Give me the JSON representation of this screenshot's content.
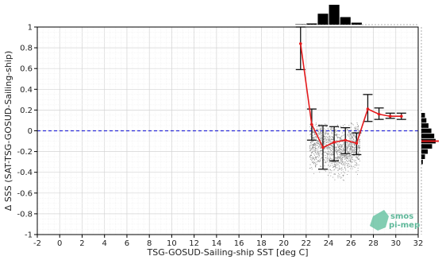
{
  "chart_data": {
    "type": "line",
    "xlabel": "TSG-GOSUD-Sailing-ship SST [deg C]",
    "ylabel": "Δ SSS (SAT-TSG-GOSUD-Sailing-ship)",
    "xlim": [
      -2,
      32
    ],
    "ylim": [
      -1,
      1
    ],
    "xticks": [
      -2,
      0,
      2,
      4,
      6,
      8,
      10,
      12,
      14,
      16,
      18,
      20,
      22,
      24,
      26,
      28,
      30,
      32
    ],
    "xtick_labels": [
      "-2",
      "0",
      "2",
      "4",
      "6",
      "8",
      "10",
      "12",
      "14",
      "16",
      "18",
      "20",
      "22",
      "24",
      "26",
      "28",
      "30",
      "32"
    ],
    "yticks": [
      -1,
      -0.8,
      -0.6,
      -0.4,
      -0.2,
      0,
      0.2,
      0.4,
      0.6,
      0.8,
      1
    ],
    "ytick_labels": [
      "-1",
      "-0.8",
      "-0.6",
      "-0.4",
      "-0.2",
      "0",
      "0.2",
      "0.4",
      "0.6",
      "0.8",
      "1"
    ],
    "grid": true,
    "reference_line": {
      "y": 0,
      "color": "#2a2ad8",
      "style": "dashed"
    },
    "series": [
      {
        "color": "#e41a1c",
        "x": [
          21.5,
          22.5,
          23.5,
          24.5,
          25.5,
          26.5,
          27.5,
          28.5,
          29.5,
          30.5
        ],
        "y": [
          0.84,
          0.06,
          -0.16,
          -0.11,
          -0.09,
          -0.12,
          0.21,
          0.16,
          0.14,
          0.14
        ],
        "err_low": [
          0.59,
          -0.09,
          -0.37,
          -0.29,
          -0.22,
          -0.23,
          0.09,
          0.11,
          0.12,
          0.11
        ],
        "err_high": [
          1.0,
          0.21,
          0.05,
          0.04,
          0.03,
          -0.02,
          0.35,
          0.22,
          0.17,
          0.17
        ]
      }
    ],
    "scatter_cloud": {
      "color": "#8a8a8a",
      "x_range": [
        22.3,
        26.8
      ],
      "y_range": [
        -0.52,
        0.08
      ]
    },
    "top_histogram": {
      "bins": [
        21.5,
        22.5,
        23.5,
        24.5,
        25.5,
        26.5
      ],
      "values": [
        0.02,
        0.06,
        0.55,
        1.0,
        0.38,
        0.1
      ]
    },
    "right_histogram": {
      "bins": [
        0.15,
        0.1,
        0.05,
        0.0,
        -0.05,
        -0.1,
        -0.15,
        -0.2,
        -0.25,
        -0.3
      ],
      "values": [
        0.25,
        0.35,
        0.5,
        0.7,
        0.9,
        1.0,
        0.75,
        0.45,
        0.25,
        0.1
      ],
      "median_line": -0.1
    },
    "logo": {
      "line1": "smos",
      "line2": "pi-mep"
    }
  }
}
